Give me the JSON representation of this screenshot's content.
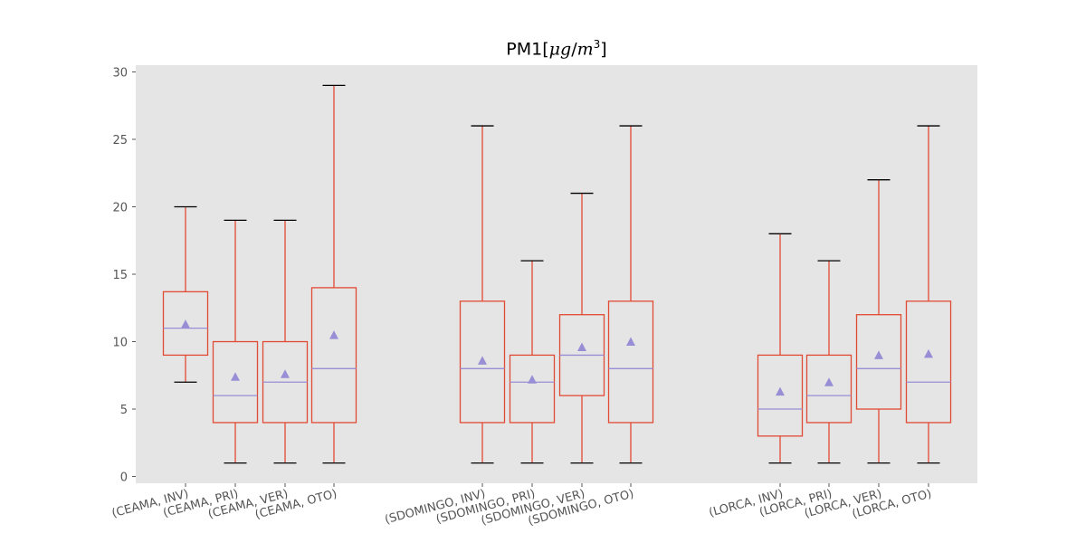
{
  "chart_data": {
    "type": "box",
    "title": "PM1[μg/m³]",
    "title_parts": {
      "prefix": "PM1[",
      "mu": "μ",
      "g": "g",
      "slash": "/",
      "m": "m",
      "exp": "3",
      "suffix": "]"
    },
    "ylim": [
      -0.5,
      30.5
    ],
    "y_ticks": [
      0,
      5,
      10,
      15,
      20,
      25,
      30
    ],
    "grid": false,
    "colors": {
      "background": "#e5e5e5",
      "box": "#e24a33",
      "median": "#988ed5",
      "mean_marker": "#988ed5",
      "cap": "#000000",
      "tick_text": "#555555"
    },
    "categories": [
      "(CEAMA, INV)",
      "(CEAMA, PRI)",
      "(CEAMA, VER)",
      "(CEAMA, OTO)",
      "(SDOMINGO, INV)",
      "(SDOMINGO, PRI)",
      "(SDOMINGO, VER)",
      "(SDOMINGO, OTO)",
      "(LORCA, INV)",
      "(LORCA, PRI)",
      "(LORCA, VER)",
      "(LORCA, OTO)"
    ],
    "boxes": [
      {
        "whislo": 7,
        "q1": 9,
        "med": 11,
        "q3": 13.7,
        "whishi": 20,
        "mean": 11.3
      },
      {
        "whislo": 1,
        "q1": 4,
        "med": 6,
        "q3": 10,
        "whishi": 19,
        "mean": 7.4
      },
      {
        "whislo": 1,
        "q1": 4,
        "med": 7,
        "q3": 10,
        "whishi": 19,
        "mean": 7.6
      },
      {
        "whislo": 1,
        "q1": 4,
        "med": 8,
        "q3": 14,
        "whishi": 29,
        "mean": 10.5
      },
      {
        "whislo": 1,
        "q1": 4,
        "med": 8,
        "q3": 13,
        "whishi": 26,
        "mean": 8.6
      },
      {
        "whislo": 1,
        "q1": 4,
        "med": 7,
        "q3": 9,
        "whishi": 16,
        "mean": 7.2
      },
      {
        "whislo": 1,
        "q1": 6,
        "med": 9,
        "q3": 12,
        "whishi": 21,
        "mean": 9.6
      },
      {
        "whislo": 1,
        "q1": 4,
        "med": 8,
        "q3": 13,
        "whishi": 26,
        "mean": 10.0
      },
      {
        "whislo": 1,
        "q1": 3,
        "med": 5,
        "q3": 9,
        "whishi": 18,
        "mean": 6.3
      },
      {
        "whislo": 1,
        "q1": 4,
        "med": 6,
        "q3": 9,
        "whishi": 16,
        "mean": 7.0
      },
      {
        "whislo": 1,
        "q1": 5,
        "med": 8,
        "q3": 12,
        "whishi": 22,
        "mean": 9.0
      },
      {
        "whislo": 1,
        "q1": 4,
        "med": 7,
        "q3": 13,
        "whishi": 26,
        "mean": 9.1
      }
    ]
  }
}
